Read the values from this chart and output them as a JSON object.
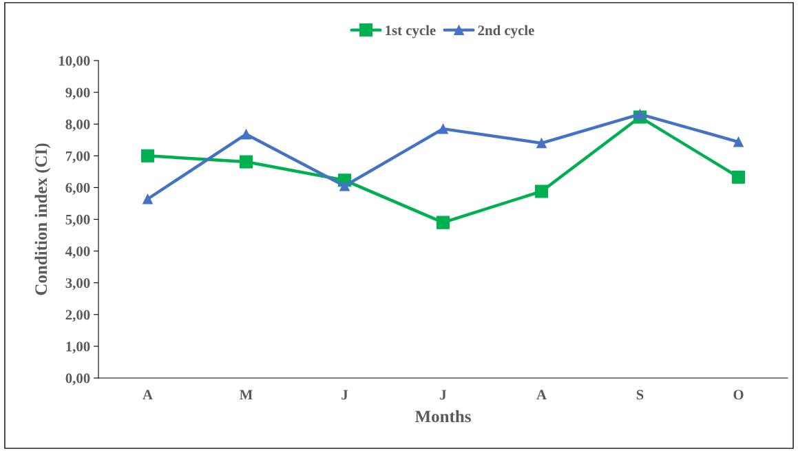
{
  "chart_data": {
    "type": "line",
    "xlabel": "Months",
    "ylabel": "Condition index (CI)",
    "categories": [
      "A",
      "M",
      "J",
      "J",
      "A",
      "S",
      "O"
    ],
    "series": [
      {
        "name": "1st cycle",
        "color": "#00b050",
        "marker": "square",
        "values": [
          7.0,
          6.81,
          6.23,
          4.9,
          5.88,
          8.22,
          6.33
        ]
      },
      {
        "name": "2nd cycle",
        "color": "#4472c4",
        "marker": "triangle",
        "values": [
          5.64,
          7.68,
          6.05,
          7.85,
          7.4,
          8.31,
          7.44
        ]
      }
    ],
    "ylim": [
      0,
      10
    ],
    "yticks": [
      {
        "value": 0,
        "label": "0,00"
      },
      {
        "value": 1,
        "label": "1,00"
      },
      {
        "value": 2,
        "label": "2,00"
      },
      {
        "value": 3,
        "label": "3,00"
      },
      {
        "value": 4,
        "label": "4,00"
      },
      {
        "value": 5,
        "label": "5,00"
      },
      {
        "value": 6,
        "label": "6,00"
      },
      {
        "value": 7,
        "label": "7,00"
      },
      {
        "value": 8,
        "label": "8,00"
      },
      {
        "value": 9,
        "label": "9,00"
      },
      {
        "value": 10,
        "label": "10,00"
      }
    ],
    "grid": false,
    "legend": "top",
    "line_style": "solid"
  }
}
